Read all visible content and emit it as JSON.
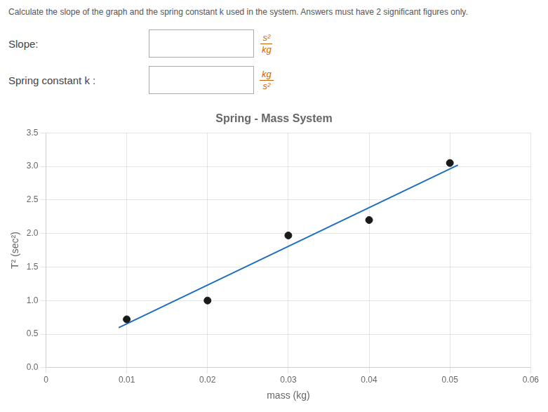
{
  "chart_data": {
    "type": "scatter",
    "title": "Spring - Mass System",
    "xlabel": "mass (kg)",
    "ylabel": "T² (sec²)",
    "annotations": [
      {
        "text": "Calculate the slope of the graph and the spring constant k used in the system. Answers must have 2 significant figures only."
      },
      {
        "text": "Slope:",
        "numerator": "s²",
        "denominator": "kg"
      },
      {
        "text": "Spring constant k :",
        "numerator": "kg",
        "denominator": "s²"
      }
    ],
    "xlim": [
      0,
      0.06
    ],
    "ylim": [
      0.0,
      3.5
    ],
    "xticks": [
      0,
      0.01,
      0.02,
      0.03,
      0.04,
      0.05,
      0.06
    ],
    "yticks": [
      {
        "value": 0.0,
        "label": "0.0"
      },
      0.5,
      {
        "value": 1.0,
        "label": "1.0"
      },
      1.5,
      {
        "value": 2.0,
        "label": "2.0"
      },
      2.5,
      {
        "value": 3.0,
        "label": "3.0"
      },
      3.5
    ],
    "grid": true,
    "series": [
      {
        "type": "line",
        "color": "#1f6dbf",
        "x": [
          0.009,
          0.051
        ],
        "values": [
          0.595,
          3.02
        ]
      },
      {
        "type": "scatter",
        "color": "#1a1a1a",
        "x": [
          0.01,
          0.02,
          0.03,
          0.04,
          0.05
        ],
        "values": [
          0.72,
          1.0,
          1.97,
          2.2,
          3.05
        ]
      }
    ]
  }
}
